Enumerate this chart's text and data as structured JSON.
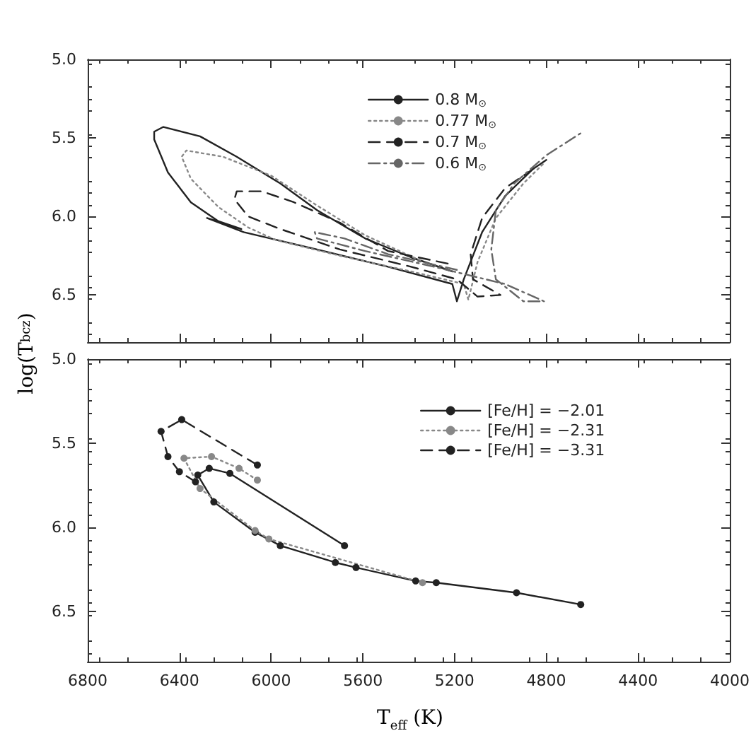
{
  "chart_data": [
    {
      "type": "line",
      "ylabel": "log(T$_{bcz}$)",
      "xlim": [
        6800,
        4000
      ],
      "xticks": [
        6800,
        6400,
        6000,
        5600,
        5200,
        4800,
        4400,
        4000
      ],
      "ylim": [
        6.8,
        5.0
      ],
      "yticks": [
        {
          "value": 5,
          "label": "5.0"
        },
        {
          "value": 5.5,
          "label": "5.5"
        },
        {
          "value": 6,
          "label": "6.0"
        },
        {
          "value": 6.5,
          "label": "6.5"
        }
      ],
      "tick_labels": "y",
      "grid": false,
      "legend": "top",
      "marker": "none",
      "series": [
        {
          "name": "0.8 M$_{⊙}$",
          "color": "#222222",
          "line_style": "solid",
          "x": [
            5210,
            5390,
            5590,
            5800,
            5960,
            6150,
            6310,
            6470,
            6510,
            6510,
            6450,
            6350,
            6230,
            6130,
            6280,
            6120,
            5800,
            5490,
            5210,
            5190,
            5160,
            5080,
            4980,
            4860,
            4800
          ],
          "values": [
            6.35,
            6.26,
            6.14,
            5.96,
            5.79,
            5.62,
            5.49,
            5.43,
            5.46,
            5.51,
            5.72,
            5.91,
            6.03,
            6.08,
            6.01,
            6.1,
            6.21,
            6.32,
            6.43,
            6.54,
            6.4,
            6.1,
            5.87,
            5.7,
            5.64
          ]
        },
        {
          "name": "0.77 M$_{⊙}$",
          "color": "#888888",
          "line_style": "dotted",
          "x": [
            5350,
            5590,
            5800,
            6000,
            6210,
            6370,
            6390,
            6350,
            6230,
            6100,
            5980,
            5700,
            5390,
            5160,
            5140,
            5100,
            5020,
            4900,
            4810
          ],
          "values": [
            6.28,
            6.12,
            5.93,
            5.74,
            5.62,
            5.58,
            5.62,
            5.76,
            5.94,
            6.07,
            6.15,
            6.25,
            6.35,
            6.43,
            6.53,
            6.29,
            6.01,
            5.79,
            5.66
          ]
        },
        {
          "name": "0.7 M$_{⊙}$",
          "color": "#222222",
          "line_style": "dashed",
          "x": [
            5230,
            5490,
            5700,
            5900,
            6040,
            6150,
            6160,
            6100,
            5960,
            5700,
            5390,
            5190,
            5100,
            5000,
            5120,
            5130,
            5080,
            4980,
            4840
          ],
          "values": [
            6.3,
            6.22,
            6.04,
            5.91,
            5.84,
            5.84,
            5.89,
            6.0,
            6.08,
            6.21,
            6.32,
            6.4,
            6.51,
            6.5,
            6.4,
            6.24,
            6.01,
            5.82,
            5.68
          ]
        },
        {
          "name": "0.6 M$_{⊙}$",
          "color": "#666666",
          "line_style": "dashdot",
          "x": [
            5190,
            5490,
            5680,
            5810,
            5800,
            5590,
            5290,
            4980,
            4810,
            4900,
            5020,
            5040,
            5020,
            4940,
            4800,
            4650
          ],
          "values": [
            6.34,
            6.24,
            6.14,
            6.1,
            6.14,
            6.22,
            6.32,
            6.43,
            6.54,
            6.54,
            6.4,
            6.21,
            5.96,
            5.79,
            5.61,
            5.47
          ]
        }
      ]
    },
    {
      "type": "line",
      "xlabel": "T$_{eff}$ (K)",
      "xlim": [
        6800,
        4000
      ],
      "xticks": [
        6800,
        6400,
        6000,
        5600,
        5200,
        4800,
        4400,
        4000
      ],
      "ylim": [
        6.8,
        5.0
      ],
      "yticks": [
        {
          "value": 5,
          "label": "5.0"
        },
        {
          "value": 5.5,
          "label": "5.5"
        },
        {
          "value": 6,
          "label": "6.0"
        },
        {
          "value": 6.5,
          "label": "6.5"
        }
      ],
      "grid": false,
      "legend": "top right",
      "marker": "circle",
      "series": [
        {
          "name": "[Fe/H] = −2.01",
          "color": "#222222",
          "line_style": "solid",
          "x": [
            5680,
            6180,
            6270,
            6320,
            6250,
            6070,
            5960,
            5720,
            5630,
            5370,
            5280,
            4930,
            4650
          ],
          "values": [
            6.11,
            5.68,
            5.65,
            5.69,
            5.85,
            6.03,
            6.11,
            6.21,
            6.24,
            6.32,
            6.33,
            6.39,
            6.46
          ]
        },
        {
          "name": "[Fe/H] = −2.31",
          "color": "#888888",
          "line_style": "dotted",
          "x": [
            6060,
            6140,
            6260,
            6380,
            6310,
            6070,
            6010,
            5340
          ],
          "values": [
            5.72,
            5.65,
            5.58,
            5.59,
            5.77,
            6.02,
            6.07,
            6.33
          ]
        },
        {
          "name": "[Fe/H] = −3.31",
          "color": "#222222",
          "line_style": "dashed",
          "x": [
            6060,
            6390,
            6480,
            6450,
            6400,
            6330
          ],
          "values": [
            5.63,
            5.36,
            5.43,
            5.58,
            5.67,
            5.73
          ]
        }
      ]
    }
  ]
}
